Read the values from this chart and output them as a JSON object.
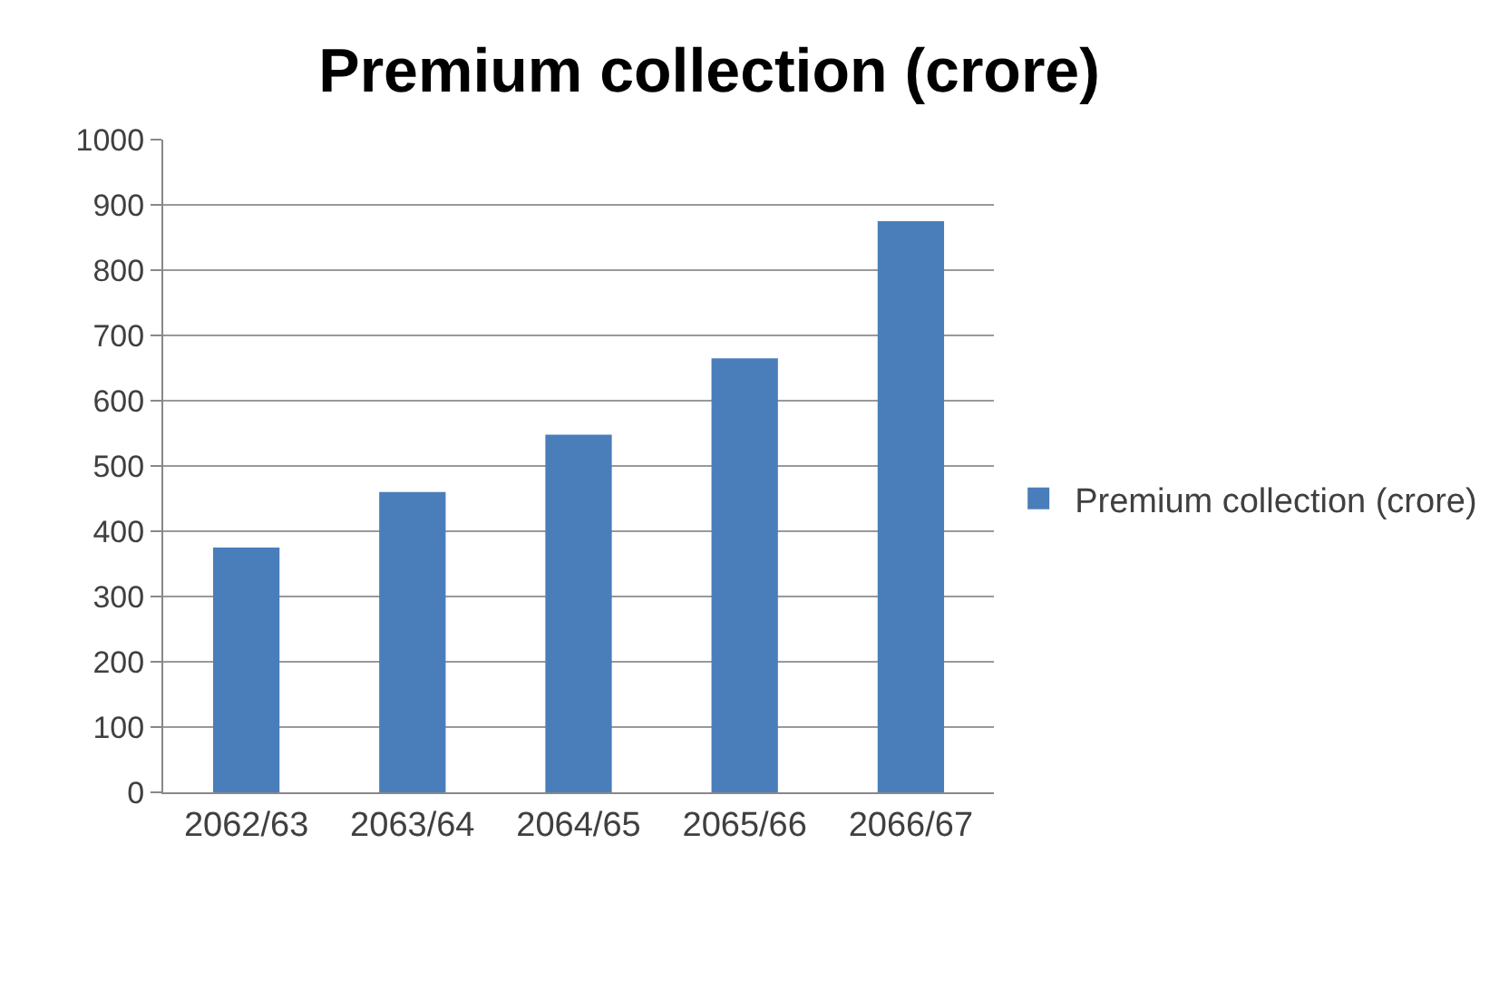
{
  "chart_data": {
    "type": "bar",
    "title": "Premium collection (crore)",
    "categories": [
      "2062/63",
      "2063/64",
      "2064/65",
      "2065/66",
      "2066/67"
    ],
    "series": [
      {
        "name": "Premium collection (crore)",
        "color": "#4a7ebb",
        "values": [
          375,
          460,
          548,
          665,
          875
        ]
      }
    ],
    "ylim": [
      0,
      1000
    ],
    "yticks": [
      0,
      100,
      200,
      300,
      400,
      500,
      600,
      700,
      800,
      900,
      1000
    ],
    "grid": "y",
    "legend": "right"
  }
}
